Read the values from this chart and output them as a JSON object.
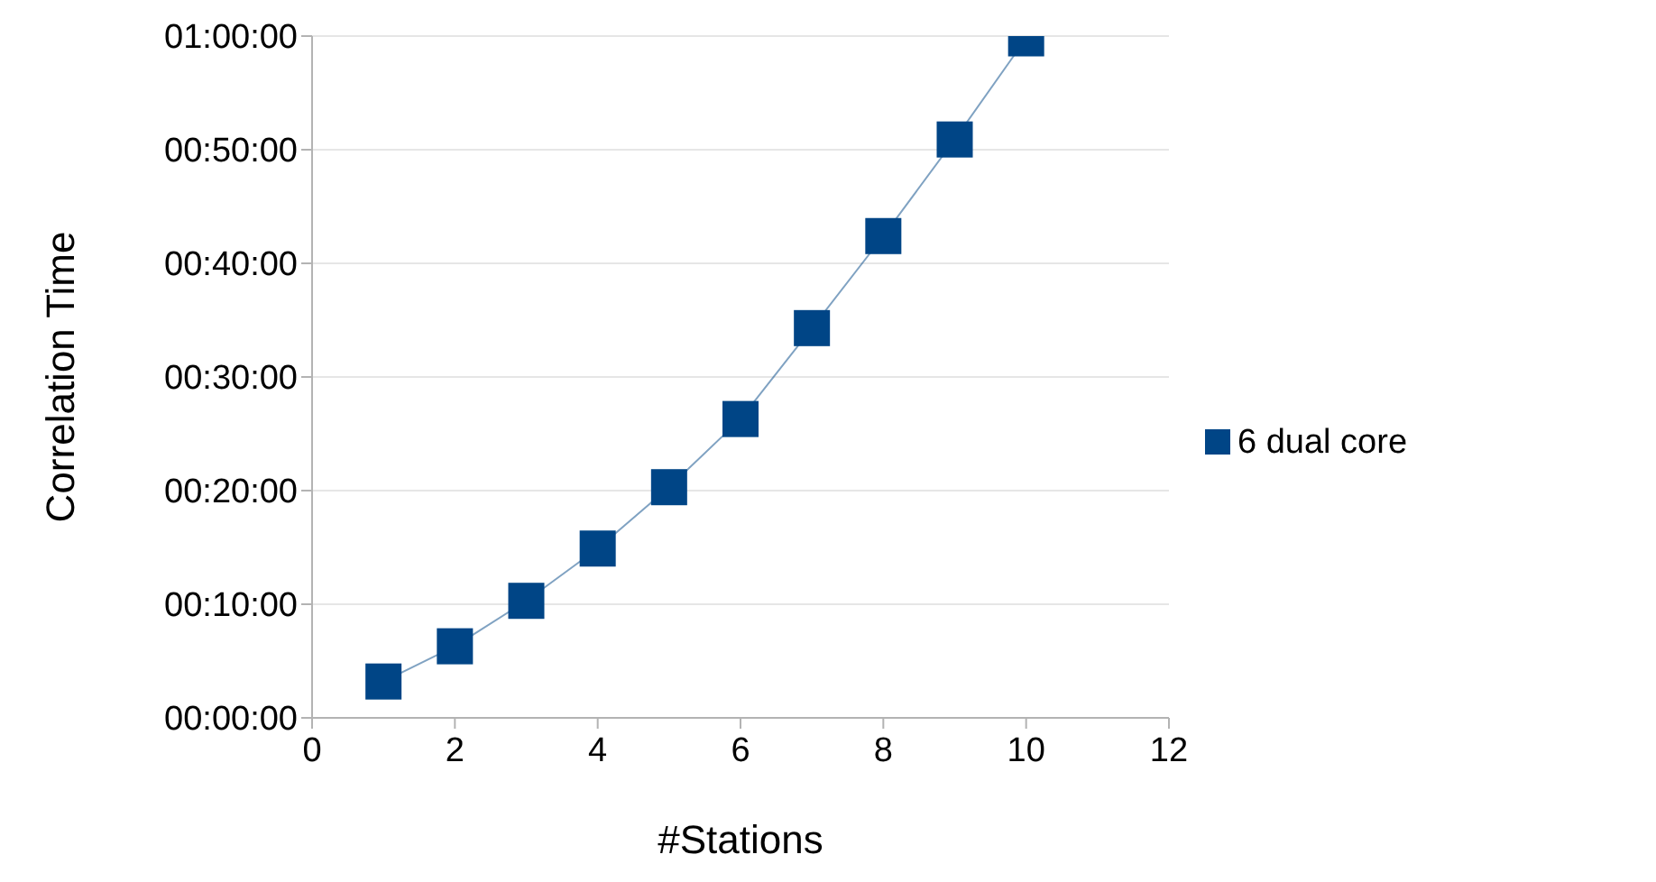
{
  "chart_data": {
    "type": "line",
    "xlabel": "#Stations",
    "ylabel": "Correlation Time",
    "x": [
      1,
      2,
      3,
      4,
      5,
      6,
      7,
      8,
      9,
      10
    ],
    "series": [
      {
        "name": "6 dual core",
        "color": "#004586",
        "values": [
          3.2,
          6.3,
          10.3,
          14.9,
          20.3,
          26.3,
          34.3,
          42.4,
          50.9,
          59.8
        ]
      }
    ],
    "xlim": [
      0,
      12
    ],
    "xticks": [
      0,
      2,
      4,
      6,
      8,
      10,
      12
    ],
    "ylim": [
      0,
      60
    ],
    "yticks": [
      {
        "value": 0,
        "label": "00:00:00"
      },
      {
        "value": 10,
        "label": "00:10:00"
      },
      {
        "value": 20,
        "label": "00:20:00"
      },
      {
        "value": 30,
        "label": "00:30:00"
      },
      {
        "value": 40,
        "label": "00:40:00"
      },
      {
        "value": 50,
        "label": "00:50:00"
      },
      {
        "value": 60,
        "label": "01:00:00"
      }
    ],
    "grid": "y",
    "legend": "right",
    "marker": "square",
    "line_style": "solid"
  }
}
